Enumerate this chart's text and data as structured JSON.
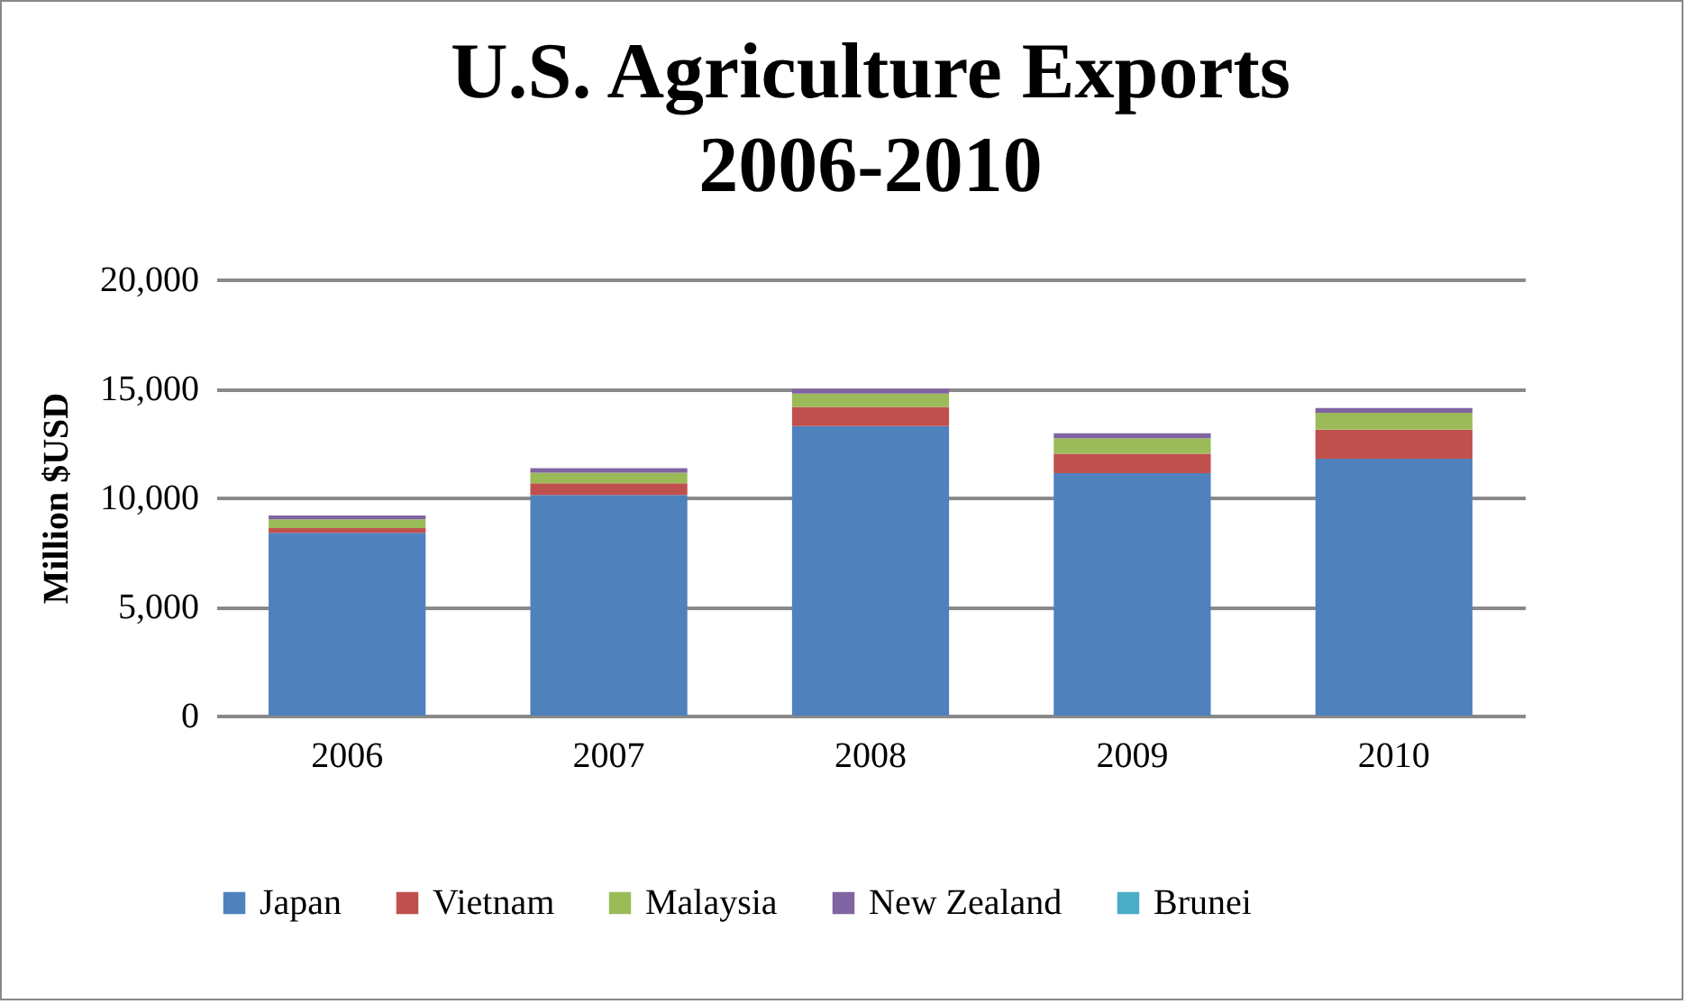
{
  "chart_data": {
    "type": "bar",
    "title": [
      "U.S. Agriculture Exports",
      "2006-2010"
    ],
    "ylabel": "Million $USD",
    "categories": [
      "2006",
      "2007",
      "2008",
      "2009",
      "2010"
    ],
    "stacked": true,
    "series": [
      {
        "name": "Japan",
        "color": "#4f81bd",
        "values": [
          8380,
          10110,
          13270,
          11120,
          11780
        ]
      },
      {
        "name": "Vietnam",
        "color": "#c0504d",
        "values": [
          210,
          540,
          880,
          880,
          1330
        ]
      },
      {
        "name": "Malaysia",
        "color": "#9bbb59",
        "values": [
          410,
          490,
          610,
          720,
          770
        ]
      },
      {
        "name": "New Zealand",
        "color": "#8064a2",
        "values": [
          170,
          200,
          220,
          220,
          220
        ]
      },
      {
        "name": "Brunei",
        "color": "#4bacc6",
        "values": [
          null,
          null,
          null,
          null,
          null
        ]
      }
    ],
    "ylim": [
      0,
      20000
    ],
    "yticks": [
      0,
      {
        "value": 5000,
        "label": "5,000"
      },
      {
        "value": 10000,
        "label": "10,000"
      },
      {
        "value": 15000,
        "label": "15,000"
      },
      {
        "value": 20000,
        "label": "20,000"
      }
    ],
    "grid": "y",
    "legend": "bottom"
  }
}
